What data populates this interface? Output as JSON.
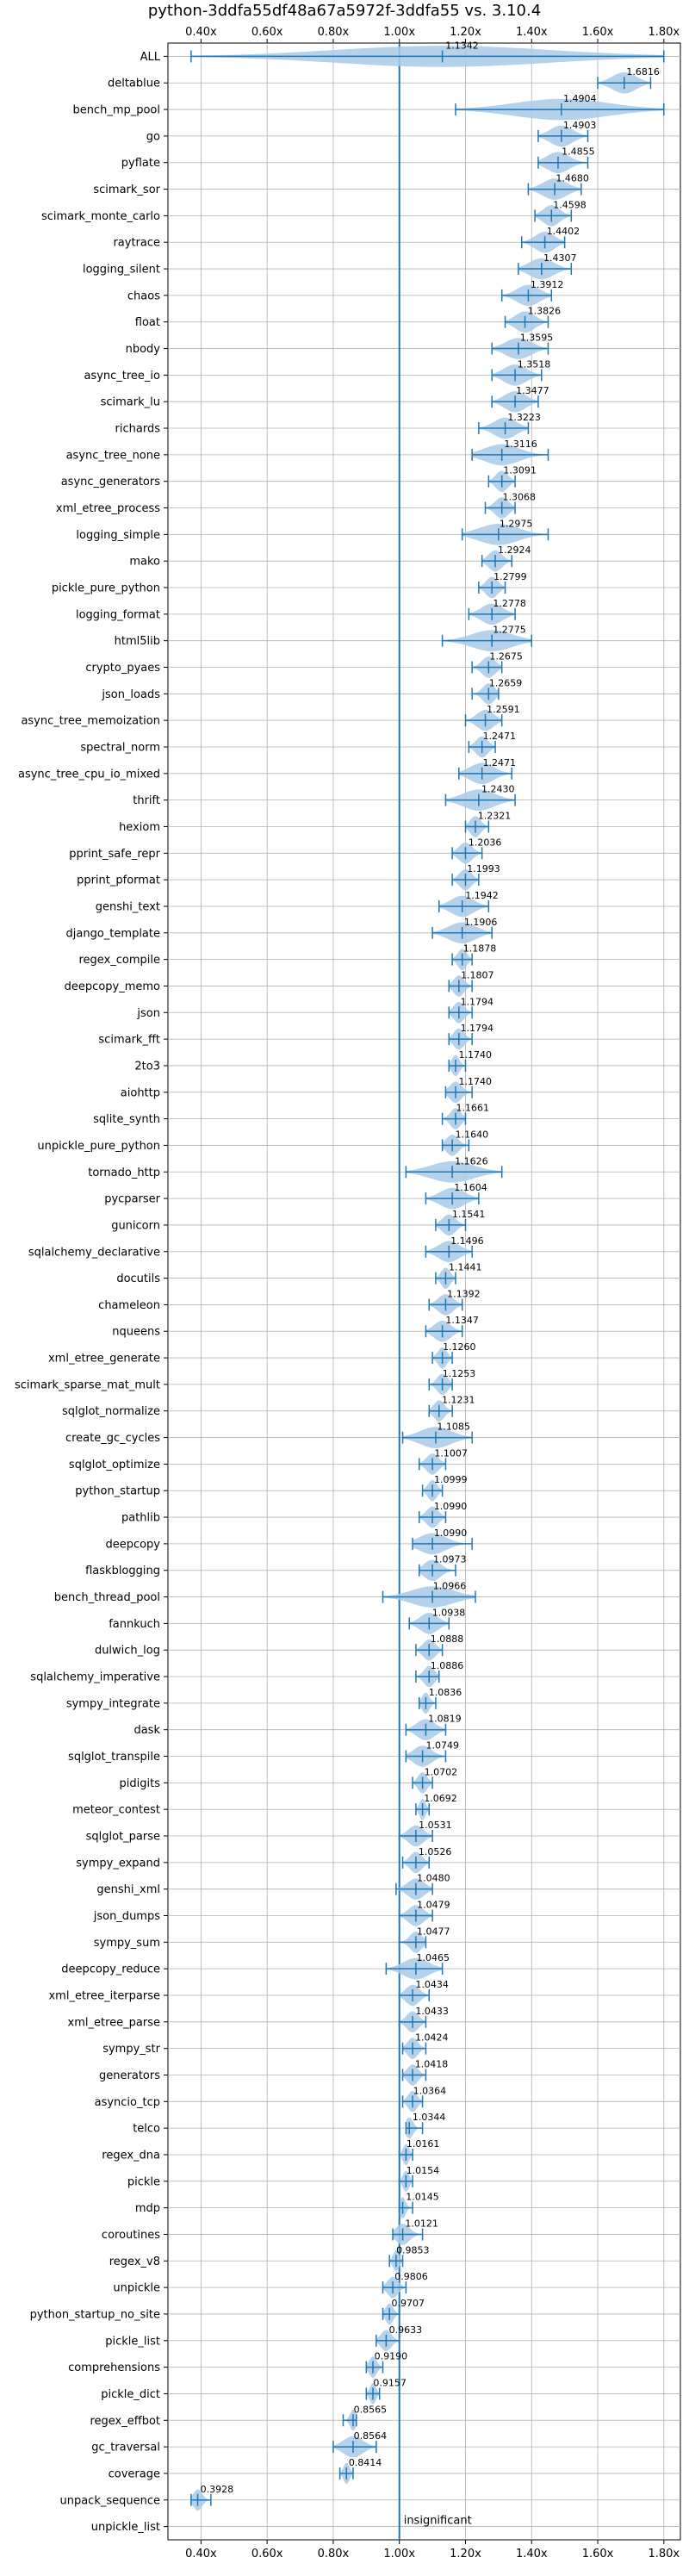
{
  "chart_data": {
    "type": "violin",
    "title": "python-3ddfa55df48a67a5972f-3ddfa55 vs. 3.10.4",
    "xlim": [
      0.3,
      1.85
    ],
    "x_ticks": [
      0.4,
      0.6,
      0.8,
      1.0,
      1.2,
      1.4,
      1.6,
      1.8
    ],
    "x_tick_labels": [
      "0.40x",
      "0.60x",
      "0.80x",
      "1.00x",
      "1.20x",
      "1.40x",
      "1.60x",
      "1.80x"
    ],
    "x_tick_positions": [
      "top",
      "bottom"
    ],
    "grid": true,
    "reference_line": 1.0,
    "annotation": "insignificant",
    "color": "#1f77b4",
    "violin_color": "#a9c9e6",
    "categories": [
      "ALL",
      "deltablue",
      "bench_mp_pool",
      "go",
      "pyflate",
      "scimark_sor",
      "scimark_monte_carlo",
      "raytrace",
      "logging_silent",
      "chaos",
      "float",
      "nbody",
      "async_tree_io",
      "scimark_lu",
      "richards",
      "async_tree_none",
      "async_generators",
      "xml_etree_process",
      "logging_simple",
      "mako",
      "pickle_pure_python",
      "logging_format",
      "html5lib",
      "crypto_pyaes",
      "json_loads",
      "async_tree_memoization",
      "spectral_norm",
      "async_tree_cpu_io_mixed",
      "thrift",
      "hexiom",
      "pprint_safe_repr",
      "pprint_pformat",
      "genshi_text",
      "django_template",
      "regex_compile",
      "deepcopy_memo",
      "json",
      "scimark_fft",
      "2to3",
      "aiohttp",
      "sqlite_synth",
      "unpickle_pure_python",
      "tornado_http",
      "pycparser",
      "gunicorn",
      "sqlalchemy_declarative",
      "docutils",
      "chameleon",
      "nqueens",
      "xml_etree_generate",
      "scimark_sparse_mat_mult",
      "sqlglot_normalize",
      "create_gc_cycles",
      "sqlglot_optimize",
      "python_startup",
      "pathlib",
      "deepcopy",
      "flaskblogging",
      "bench_thread_pool",
      "fannkuch",
      "dulwich_log",
      "sqlalchemy_imperative",
      "sympy_integrate",
      "dask",
      "sqlglot_transpile",
      "pidigits",
      "meteor_contest",
      "sqlglot_parse",
      "sympy_expand",
      "genshi_xml",
      "json_dumps",
      "sympy_sum",
      "deepcopy_reduce",
      "xml_etree_iterparse",
      "xml_etree_parse",
      "sympy_str",
      "generators",
      "asyncio_tcp",
      "telco",
      "regex_dna",
      "pickle",
      "mdp",
      "coroutines",
      "regex_v8",
      "unpickle",
      "python_startup_no_site",
      "pickle_list",
      "comprehensions",
      "pickle_dict",
      "regex_effbot",
      "gc_traversal",
      "coverage",
      "unpack_sequence",
      "unpickle_list"
    ],
    "value_labels": [
      "1.1342",
      "1.6816",
      "1.4904",
      "1.4903",
      "1.4855",
      "1.4680",
      "1.4598",
      "1.4402",
      "1.4307",
      "1.3912",
      "1.3826",
      "1.3595",
      "1.3518",
      "1.3477",
      "1.3223",
      "1.3116",
      "1.3091",
      "1.3068",
      "1.2975",
      "1.2924",
      "1.2799",
      "1.2778",
      "1.2775",
      "1.2675",
      "1.2659",
      "1.2591",
      "1.2471",
      "1.2471",
      "1.2430",
      "1.2321",
      "1.2036",
      "1.1993",
      "1.1942",
      "1.1906",
      "1.1878",
      "1.1807",
      "1.1794",
      "1.1794",
      "1.1740",
      "1.1740",
      "1.1661",
      "1.1640",
      "1.1626",
      "1.1604",
      "1.1541",
      "1.1496",
      "1.1441",
      "1.1392",
      "1.1347",
      "1.1260",
      "1.1253",
      "1.1231",
      "1.1085",
      "1.1007",
      "1.0999",
      "1.0990",
      "1.0990",
      "1.0973",
      "1.0966",
      "1.0938",
      "1.0888",
      "1.0886",
      "1.0836",
      "1.0819",
      "1.0749",
      "1.0702",
      "1.0692",
      "1.0531",
      "1.0526",
      "1.0480",
      "1.0479",
      "1.0477",
      "1.0465",
      "1.0434",
      "1.0433",
      "1.0424",
      "1.0418",
      "1.0364",
      "1.0344",
      "1.0161",
      "1.0154",
      "1.0145",
      "1.0121",
      "0.9853",
      "0.9806",
      "0.9707",
      "0.9633",
      "0.9190",
      "0.9157",
      "0.8565",
      "0.8564",
      "0.8414",
      "0.3928",
      ""
    ],
    "values": [
      1.1342,
      1.6816,
      1.4904,
      1.4903,
      1.4855,
      1.468,
      1.4598,
      1.4402,
      1.4307,
      1.3912,
      1.3826,
      1.3595,
      1.3518,
      1.3477,
      1.3223,
      1.3116,
      1.3091,
      1.3068,
      1.2975,
      1.2924,
      1.2799,
      1.2778,
      1.2775,
      1.2675,
      1.2659,
      1.2591,
      1.2471,
      1.2471,
      1.243,
      1.2321,
      1.2036,
      1.1993,
      1.1942,
      1.1906,
      1.1878,
      1.1807,
      1.1794,
      1.1794,
      1.174,
      1.174,
      1.1661,
      1.164,
      1.1626,
      1.1604,
      1.1541,
      1.1496,
      1.1441,
      1.1392,
      1.1347,
      1.126,
      1.1253,
      1.1231,
      1.1085,
      1.1007,
      1.0999,
      1.099,
      1.099,
      1.0973,
      1.0966,
      1.0938,
      1.0888,
      1.0886,
      1.0836,
      1.0819,
      1.0749,
      1.0702,
      1.0692,
      1.0531,
      1.0526,
      1.048,
      1.0479,
      1.0477,
      1.0465,
      1.0434,
      1.0433,
      1.0424,
      1.0418,
      1.0364,
      1.0344,
      1.0161,
      1.0154,
      1.0145,
      1.0121,
      0.9853,
      0.9806,
      0.9707,
      0.9633,
      0.919,
      0.9157,
      0.8565,
      0.8564,
      0.8414,
      0.3928,
      null
    ],
    "ranges": [
      [
        0.37,
        1.8
      ],
      [
        1.6,
        1.76
      ],
      [
        1.17,
        1.8
      ],
      [
        1.42,
        1.57
      ],
      [
        1.42,
        1.57
      ],
      [
        1.39,
        1.55
      ],
      [
        1.41,
        1.52
      ],
      [
        1.37,
        1.5
      ],
      [
        1.36,
        1.52
      ],
      [
        1.31,
        1.46
      ],
      [
        1.32,
        1.45
      ],
      [
        1.28,
        1.45
      ],
      [
        1.28,
        1.43
      ],
      [
        1.28,
        1.42
      ],
      [
        1.24,
        1.39
      ],
      [
        1.22,
        1.45
      ],
      [
        1.27,
        1.35
      ],
      [
        1.26,
        1.35
      ],
      [
        1.19,
        1.45
      ],
      [
        1.25,
        1.34
      ],
      [
        1.24,
        1.32
      ],
      [
        1.21,
        1.35
      ],
      [
        1.13,
        1.4
      ],
      [
        1.22,
        1.31
      ],
      [
        1.22,
        1.3
      ],
      [
        1.2,
        1.31
      ],
      [
        1.21,
        1.29
      ],
      [
        1.18,
        1.34
      ],
      [
        1.14,
        1.35
      ],
      [
        1.2,
        1.27
      ],
      [
        1.16,
        1.25
      ],
      [
        1.16,
        1.24
      ],
      [
        1.12,
        1.27
      ],
      [
        1.1,
        1.28
      ],
      [
        1.16,
        1.22
      ],
      [
        1.15,
        1.22
      ],
      [
        1.15,
        1.22
      ],
      [
        1.15,
        1.22
      ],
      [
        1.15,
        1.2
      ],
      [
        1.14,
        1.22
      ],
      [
        1.13,
        1.2
      ],
      [
        1.13,
        1.21
      ],
      [
        1.02,
        1.31
      ],
      [
        1.08,
        1.24
      ],
      [
        1.11,
        1.2
      ],
      [
        1.08,
        1.22
      ],
      [
        1.11,
        1.17
      ],
      [
        1.09,
        1.19
      ],
      [
        1.08,
        1.19
      ],
      [
        1.1,
        1.16
      ],
      [
        1.09,
        1.16
      ],
      [
        1.09,
        1.16
      ],
      [
        1.01,
        1.22
      ],
      [
        1.06,
        1.14
      ],
      [
        1.07,
        1.13
      ],
      [
        1.06,
        1.14
      ],
      [
        1.04,
        1.22
      ],
      [
        1.06,
        1.17
      ],
      [
        0.95,
        1.23
      ],
      [
        1.03,
        1.15
      ],
      [
        1.05,
        1.13
      ],
      [
        1.05,
        1.12
      ],
      [
        1.06,
        1.11
      ],
      [
        1.02,
        1.14
      ],
      [
        1.02,
        1.14
      ],
      [
        1.04,
        1.1
      ],
      [
        1.05,
        1.09
      ],
      [
        1.0,
        1.1
      ],
      [
        1.01,
        1.09
      ],
      [
        0.99,
        1.1
      ],
      [
        1.0,
        1.1
      ],
      [
        1.0,
        1.08
      ],
      [
        0.96,
        1.13
      ],
      [
        1.0,
        1.09
      ],
      [
        1.0,
        1.08
      ],
      [
        1.01,
        1.08
      ],
      [
        1.01,
        1.08
      ],
      [
        1.01,
        1.07
      ],
      [
        1.02,
        1.07
      ],
      [
        1.0,
        1.04
      ],
      [
        1.0,
        1.04
      ],
      [
        1.0,
        1.04
      ],
      [
        0.98,
        1.07
      ],
      [
        0.97,
        1.01
      ],
      [
        0.95,
        1.02
      ],
      [
        0.95,
        1.0
      ],
      [
        0.93,
        1.0
      ],
      [
        0.9,
        0.95
      ],
      [
        0.9,
        0.94
      ],
      [
        0.83,
        0.87
      ],
      [
        0.8,
        0.93
      ],
      [
        0.82,
        0.86
      ],
      [
        0.37,
        0.43
      ],
      [
        null,
        null
      ]
    ],
    "means": [
      1.13,
      1.68,
      1.49,
      1.49,
      1.48,
      1.47,
      1.46,
      1.44,
      1.43,
      1.39,
      1.38,
      1.36,
      1.35,
      1.35,
      1.32,
      1.31,
      1.31,
      1.31,
      1.3,
      1.29,
      1.28,
      1.28,
      1.28,
      1.27,
      1.27,
      1.26,
      1.25,
      1.25,
      1.24,
      1.23,
      1.2,
      1.2,
      1.19,
      1.19,
      1.19,
      1.18,
      1.18,
      1.18,
      1.17,
      1.17,
      1.17,
      1.16,
      1.16,
      1.16,
      1.15,
      1.15,
      1.14,
      1.14,
      1.13,
      1.13,
      1.13,
      1.12,
      1.11,
      1.1,
      1.1,
      1.1,
      1.1,
      1.1,
      1.1,
      1.09,
      1.09,
      1.09,
      1.08,
      1.08,
      1.07,
      1.07,
      1.07,
      1.05,
      1.05,
      1.05,
      1.05,
      1.05,
      1.05,
      1.04,
      1.04,
      1.04,
      1.04,
      1.04,
      1.03,
      1.02,
      1.02,
      1.01,
      1.01,
      0.99,
      0.98,
      0.97,
      0.96,
      0.92,
      0.92,
      0.86,
      0.86,
      0.84,
      0.39,
      null
    ]
  }
}
